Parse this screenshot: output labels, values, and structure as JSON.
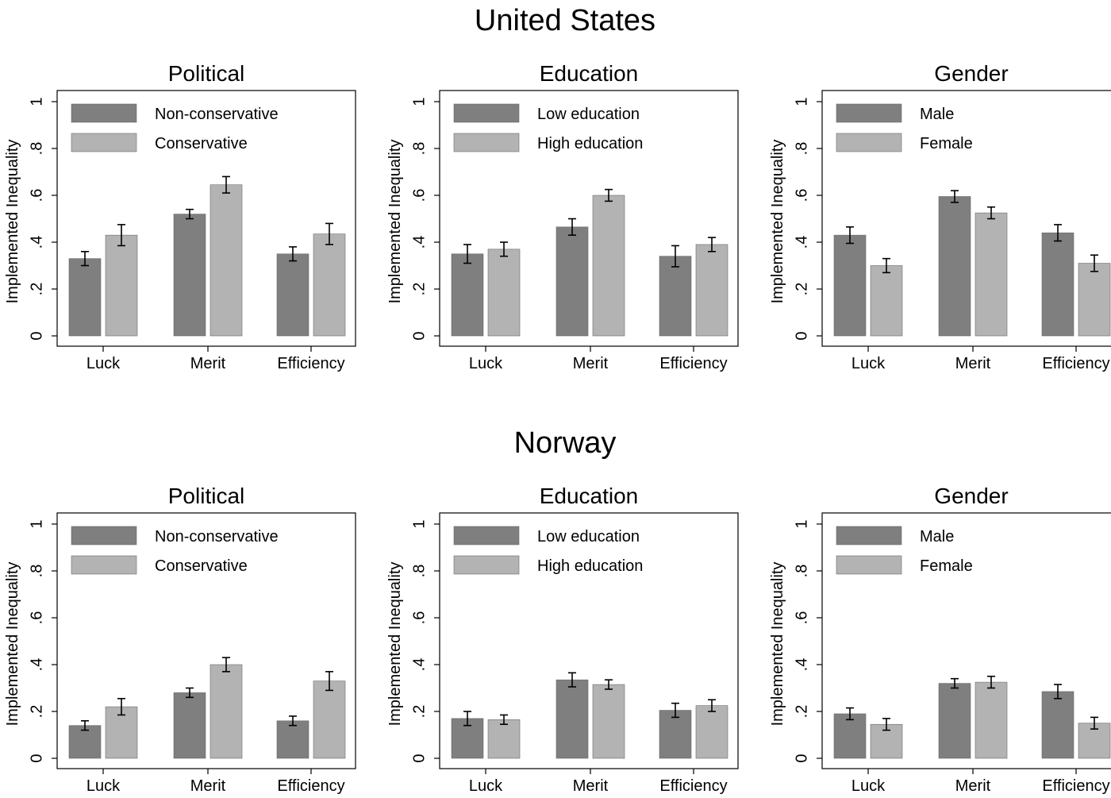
{
  "sections": [
    {
      "title": "United States"
    },
    {
      "title": "Norway"
    }
  ],
  "colors": {
    "dark_bar": "#7f7f7f",
    "light_bar": "#b3b3b3",
    "border": "#000000"
  },
  "chart_data": [
    {
      "type": "bar",
      "section": "United States",
      "title": "Political",
      "ylabel": "Implemented Inequality",
      "ylim": [
        0,
        1
      ],
      "yticks": [
        0,
        0.2,
        0.4,
        0.6,
        0.8,
        1
      ],
      "yticklabels": [
        "0",
        ".2",
        ".4",
        ".6",
        ".8",
        "1"
      ],
      "categories": [
        "Luck",
        "Merit",
        "Efficiency"
      ],
      "legend_position": "top-left",
      "grid": false,
      "series": [
        {
          "name": "Non-conservative",
          "values": [
            0.33,
            0.52,
            0.35
          ],
          "err": [
            0.03,
            0.02,
            0.03
          ]
        },
        {
          "name": "Conservative",
          "values": [
            0.43,
            0.645,
            0.435
          ],
          "err": [
            0.045,
            0.035,
            0.045
          ]
        }
      ]
    },
    {
      "type": "bar",
      "section": "United States",
      "title": "Education",
      "ylabel": "Implemented Inequality",
      "ylim": [
        0,
        1
      ],
      "yticks": [
        0,
        0.2,
        0.4,
        0.6,
        0.8,
        1
      ],
      "yticklabels": [
        "0",
        ".2",
        ".4",
        ".6",
        ".8",
        "1"
      ],
      "categories": [
        "Luck",
        "Merit",
        "Efficiency"
      ],
      "legend_position": "top-left",
      "grid": false,
      "series": [
        {
          "name": "Low education",
          "values": [
            0.35,
            0.465,
            0.34
          ],
          "err": [
            0.04,
            0.035,
            0.045
          ]
        },
        {
          "name": "High education",
          "values": [
            0.37,
            0.6,
            0.39
          ],
          "err": [
            0.03,
            0.025,
            0.03
          ]
        }
      ]
    },
    {
      "type": "bar",
      "section": "United States",
      "title": "Gender",
      "ylabel": "Implemented Inequality",
      "ylim": [
        0,
        1
      ],
      "yticks": [
        0,
        0.2,
        0.4,
        0.6,
        0.8,
        1
      ],
      "yticklabels": [
        "0",
        ".2",
        ".4",
        ".6",
        ".8",
        "1"
      ],
      "categories": [
        "Luck",
        "Merit",
        "Efficiency"
      ],
      "legend_position": "top-left",
      "grid": false,
      "series": [
        {
          "name": "Male",
          "values": [
            0.43,
            0.595,
            0.44
          ],
          "err": [
            0.035,
            0.025,
            0.035
          ]
        },
        {
          "name": "Female",
          "values": [
            0.3,
            0.525,
            0.31
          ],
          "err": [
            0.03,
            0.025,
            0.035
          ]
        }
      ]
    },
    {
      "type": "bar",
      "section": "Norway",
      "title": "Political",
      "ylabel": "Implemented Inequality",
      "ylim": [
        0,
        1
      ],
      "yticks": [
        0,
        0.2,
        0.4,
        0.6,
        0.8,
        1
      ],
      "yticklabels": [
        "0",
        ".2",
        ".4",
        ".6",
        ".8",
        "1"
      ],
      "categories": [
        "Luck",
        "Merit",
        "Efficiency"
      ],
      "legend_position": "top-left",
      "grid": false,
      "series": [
        {
          "name": "Non-conservative",
          "values": [
            0.14,
            0.28,
            0.16
          ],
          "err": [
            0.02,
            0.02,
            0.02
          ]
        },
        {
          "name": "Conservative",
          "values": [
            0.22,
            0.4,
            0.33
          ],
          "err": [
            0.035,
            0.03,
            0.04
          ]
        }
      ]
    },
    {
      "type": "bar",
      "section": "Norway",
      "title": "Education",
      "ylabel": "Implemented Inequality",
      "ylim": [
        0,
        1
      ],
      "yticks": [
        0,
        0.2,
        0.4,
        0.6,
        0.8,
        1
      ],
      "yticklabels": [
        "0",
        ".2",
        ".4",
        ".6",
        ".8",
        "1"
      ],
      "categories": [
        "Luck",
        "Merit",
        "Efficiency"
      ],
      "legend_position": "top-left",
      "grid": false,
      "series": [
        {
          "name": "Low education",
          "values": [
            0.17,
            0.335,
            0.205
          ],
          "err": [
            0.03,
            0.03,
            0.03
          ]
        },
        {
          "name": "High education",
          "values": [
            0.165,
            0.315,
            0.225
          ],
          "err": [
            0.02,
            0.02,
            0.025
          ]
        }
      ]
    },
    {
      "type": "bar",
      "section": "Norway",
      "title": "Gender",
      "ylabel": "Implemented Inequality",
      "ylim": [
        0,
        1
      ],
      "yticks": [
        0,
        0.2,
        0.4,
        0.6,
        0.8,
        1
      ],
      "yticklabels": [
        "0",
        ".2",
        ".4",
        ".6",
        ".8",
        "1"
      ],
      "categories": [
        "Luck",
        "Merit",
        "Efficiency"
      ],
      "legend_position": "top-left",
      "grid": false,
      "series": [
        {
          "name": "Male",
          "values": [
            0.19,
            0.32,
            0.285
          ],
          "err": [
            0.025,
            0.02,
            0.03
          ]
        },
        {
          "name": "Female",
          "values": [
            0.145,
            0.325,
            0.15
          ],
          "err": [
            0.025,
            0.025,
            0.025
          ]
        }
      ]
    }
  ]
}
